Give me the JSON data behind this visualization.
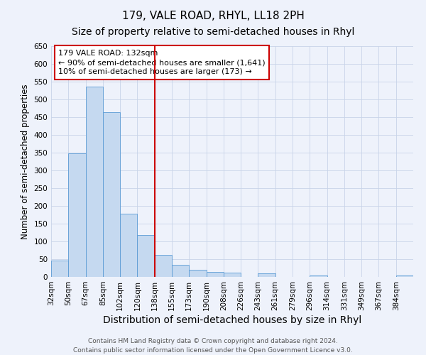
{
  "title": "179, VALE ROAD, RHYL, LL18 2PH",
  "subtitle": "Size of property relative to semi-detached houses in Rhyl",
  "xlabel": "Distribution of semi-detached houses by size in Rhyl",
  "ylabel": "Number of semi-detached properties",
  "bin_labels": [
    "32sqm",
    "50sqm",
    "67sqm",
    "85sqm",
    "102sqm",
    "120sqm",
    "138sqm",
    "155sqm",
    "173sqm",
    "190sqm",
    "208sqm",
    "226sqm",
    "243sqm",
    "261sqm",
    "279sqm",
    "296sqm",
    "314sqm",
    "331sqm",
    "349sqm",
    "367sqm",
    "384sqm"
  ],
  "bar_values": [
    46,
    348,
    536,
    465,
    178,
    119,
    62,
    35,
    21,
    14,
    13,
    0,
    10,
    0,
    0,
    5,
    0,
    0,
    0,
    0,
    5
  ],
  "bar_color": "#c5d9f0",
  "bar_edge_color": "#5b9bd5",
  "grid_color": "#c8d4e8",
  "background_color": "#eef2fb",
  "vline_x": 6.0,
  "vline_color": "#cc0000",
  "annotation_line1": "179 VALE ROAD: 132sqm",
  "annotation_line2": "← 90% of semi-detached houses are smaller (1,641)",
  "annotation_line3": "10% of semi-detached houses are larger (173) →",
  "annotation_box_color": "#cc0000",
  "ylim": [
    0,
    650
  ],
  "yticks": [
    0,
    50,
    100,
    150,
    200,
    250,
    300,
    350,
    400,
    450,
    500,
    550,
    600,
    650
  ],
  "footer_line1": "Contains HM Land Registry data © Crown copyright and database right 2024.",
  "footer_line2": "Contains public sector information licensed under the Open Government Licence v3.0.",
  "title_fontsize": 11,
  "subtitle_fontsize": 10,
  "xlabel_fontsize": 10,
  "ylabel_fontsize": 8.5,
  "tick_fontsize": 7.5,
  "annotation_fontsize": 8,
  "footer_fontsize": 6.5
}
